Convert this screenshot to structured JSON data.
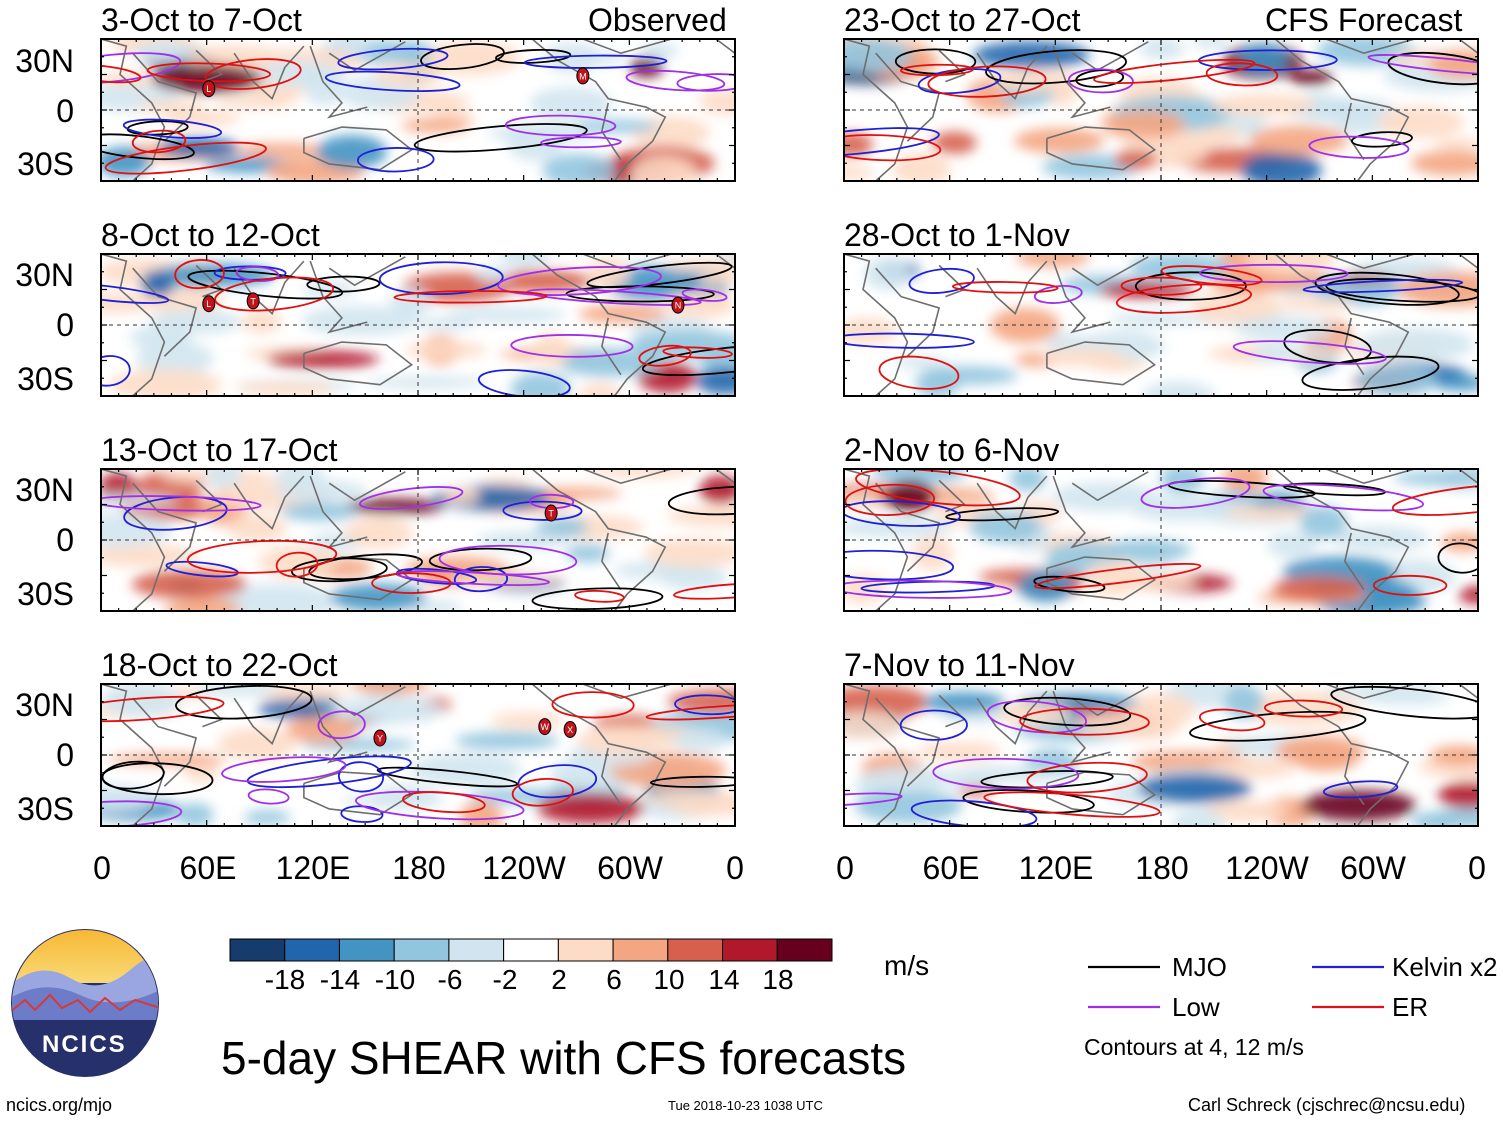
{
  "titles": {
    "observed": "Observed",
    "forecast": "CFS Forecast",
    "main": "5-day SHEAR with CFS forecasts"
  },
  "panels": [
    {
      "period": "3-Oct to 7-Oct",
      "storms": [
        "L",
        "M"
      ]
    },
    {
      "period": "8-Oct to 12-Oct",
      "storms": [
        "L",
        "T",
        "N"
      ]
    },
    {
      "period": "13-Oct to 17-Oct",
      "storms": [
        "T"
      ]
    },
    {
      "period": "18-Oct to 22-Oct",
      "storms": [
        "Y",
        "W",
        "X"
      ]
    },
    {
      "period": "23-Oct to 27-Oct",
      "storms": []
    },
    {
      "period": "28-Oct to 1-Nov",
      "storms": []
    },
    {
      "period": "2-Nov to 6-Nov",
      "storms": []
    },
    {
      "period": "7-Nov to 11-Nov",
      "storms": []
    }
  ],
  "lat_labels": [
    "30N",
    "0",
    "30S"
  ],
  "lon_labels": [
    "0",
    "60E",
    "120E",
    "180",
    "120W",
    "60W",
    "0"
  ],
  "colorbar": {
    "ticks": [
      "-18",
      "-14",
      "-10",
      "-6",
      "-2",
      "2",
      "6",
      "10",
      "14",
      "18"
    ],
    "colors": [
      "#163c6e",
      "#2166ac",
      "#4393c3",
      "#92c5de",
      "#d1e5f0",
      "#ffffff",
      "#fddbc7",
      "#f4a582",
      "#d6604d",
      "#b2182b",
      "#67001f"
    ],
    "units": "m/s"
  },
  "legend": {
    "items": [
      {
        "label": "MJO",
        "color": "#000000"
      },
      {
        "label": "Kelvin x2",
        "color": "#1f1fd6"
      },
      {
        "label": "Low",
        "color": "#a030e8"
      },
      {
        "label": "ER",
        "color": "#e01010"
      }
    ],
    "note": "Contours at 4, 12 m/s"
  },
  "logo_text": "NCICS",
  "footer": {
    "url": "ncics.org/mjo",
    "timestamp": "Tue 2018-10-23 1038 UTC",
    "author": "Carl Schreck (cjschrec@ncsu.edu)"
  }
}
